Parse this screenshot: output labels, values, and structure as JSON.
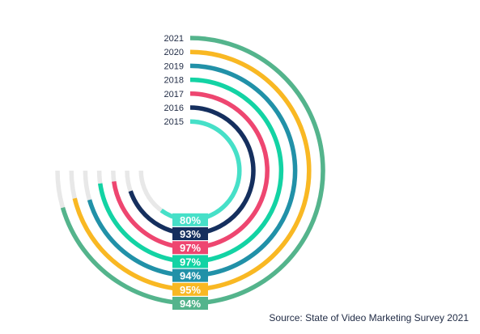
{
  "chart_data": {
    "type": "radial-bar",
    "title": "",
    "max": 100,
    "series": [
      {
        "year": "2021",
        "value": 94,
        "label": "94%",
        "color": "#54b48c"
      },
      {
        "year": "2020",
        "value": 95,
        "label": "95%",
        "color": "#f9b823"
      },
      {
        "year": "2019",
        "value": 94,
        "label": "94%",
        "color": "#2191a8"
      },
      {
        "year": "2018",
        "value": 97,
        "label": "97%",
        "color": "#13d3a4"
      },
      {
        "year": "2017",
        "value": 97,
        "label": "97%",
        "color": "#ee4670"
      },
      {
        "year": "2016",
        "value": 93,
        "label": "93%",
        "color": "#152f5e"
      },
      {
        "year": "2015",
        "value": 80,
        "label": "80%",
        "color": "#46e0c8"
      }
    ],
    "track_color": "#e8e8e8",
    "source": "Source: State of Video Marketing Survey 2021"
  }
}
